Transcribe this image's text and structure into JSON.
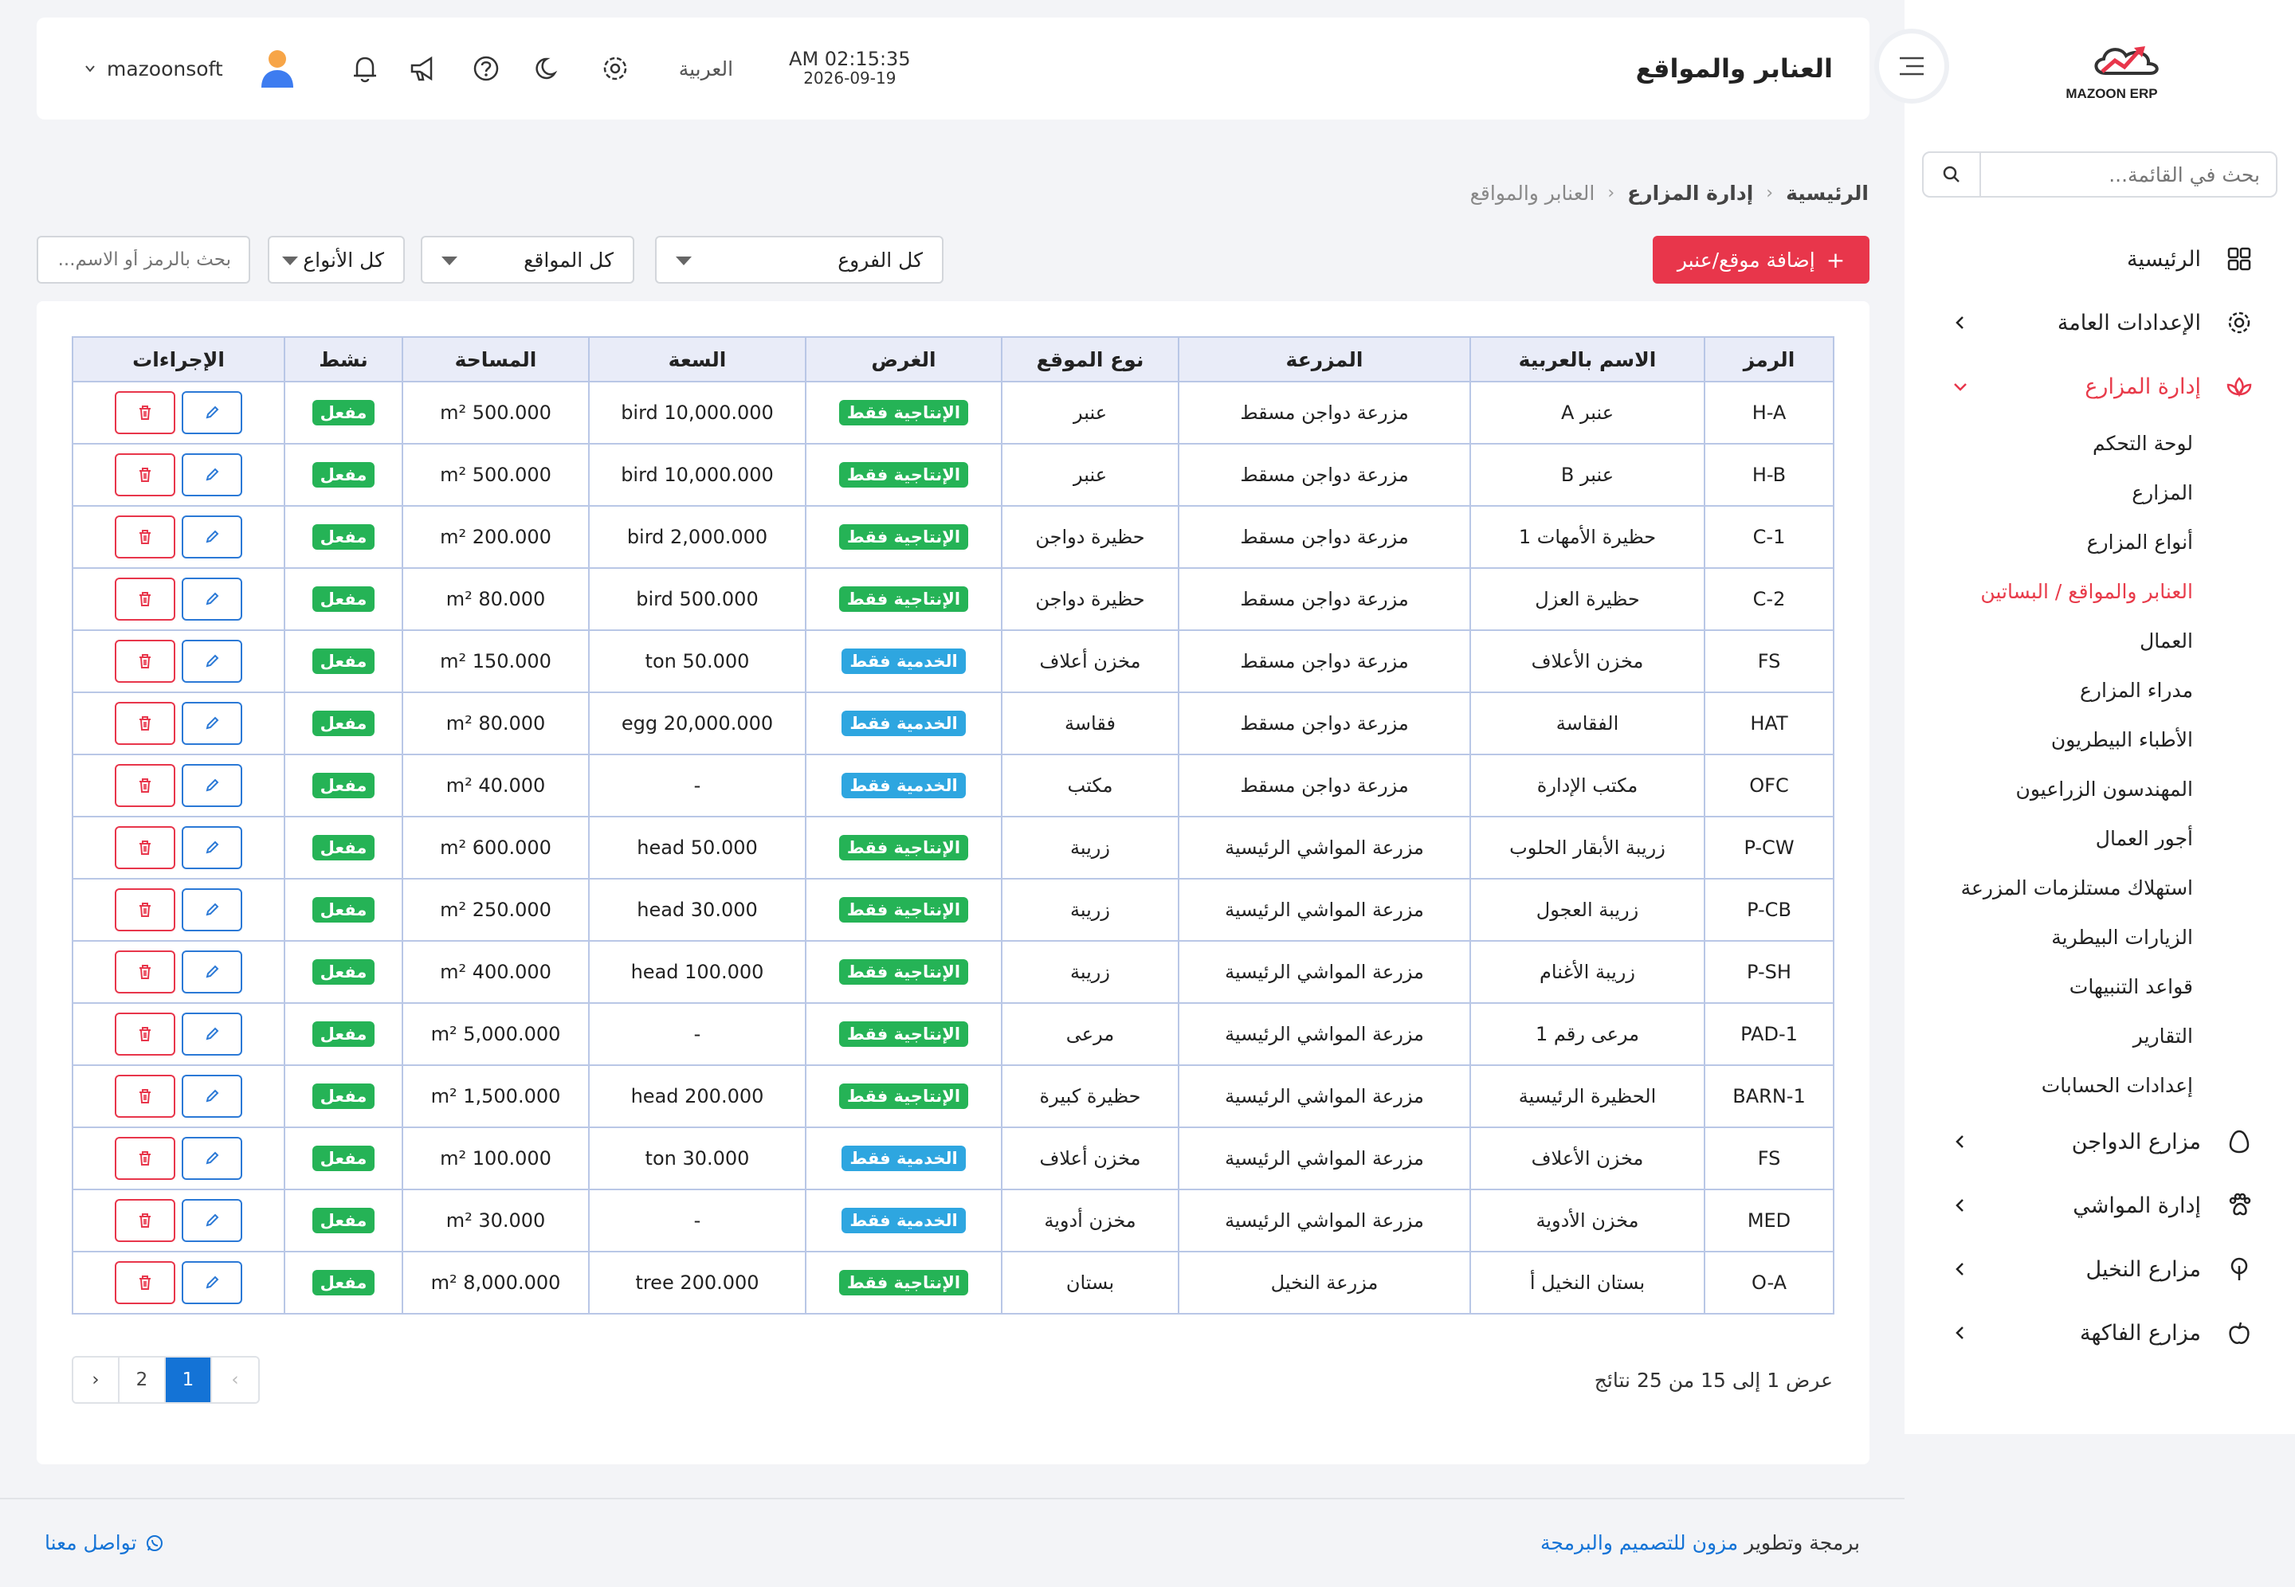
{
  "sidebar": {
    "brand": "MAZOON ERP",
    "search_placeholder": "بحث في القائمة...",
    "items": [
      {
        "label": "الرئيسية"
      },
      {
        "label": "الإعدادات العامة"
      },
      {
        "label": "إدارة المزارع"
      },
      {
        "label": "مزارع الدواجن"
      },
      {
        "label": "إدارة المواشي"
      },
      {
        "label": "مزارع النخيل"
      },
      {
        "label": "مزارع الفاكهة"
      }
    ],
    "sub_items": [
      {
        "label": "لوحة التحكم"
      },
      {
        "label": "المزارع"
      },
      {
        "label": "أنواع المزارع"
      },
      {
        "label": "العنابر والمواقع / البساتين"
      },
      {
        "label": "العمال"
      },
      {
        "label": "مدراء المزارع"
      },
      {
        "label": "الأطباء البيطريون"
      },
      {
        "label": "المهندسون الزراعيون"
      },
      {
        "label": "أجور العمال"
      },
      {
        "label": "استهلاك مستلزمات المزرعة"
      },
      {
        "label": "الزيارات البيطرية"
      },
      {
        "label": "قواعد التنبيهات"
      },
      {
        "label": "التقارير"
      },
      {
        "label": "إعدادات الحسابات"
      }
    ]
  },
  "header": {
    "title": "العنابر والمواقع",
    "time": "AM 02:15:35",
    "date": "2026-09-19",
    "language": "العربية",
    "username": "mazoonsoft"
  },
  "breadcrumb": {
    "home": "الرئيسية",
    "section": "إدارة المزارع",
    "current": "العنابر والمواقع"
  },
  "toolbar": {
    "add_button": "إضافة موقع/عنبر",
    "branches": "كل الفروع",
    "locations": "كل المواقع",
    "types": "كل الأنواع",
    "search_placeholder": "بحث بالرمز أو الاسم..."
  },
  "table": {
    "headers": [
      "الرمز",
      "الاسم بالعربية",
      "المزرعة",
      "نوع الموقع",
      "الغرض",
      "السعة",
      "المساحة",
      "نشط",
      "الإجراءات"
    ],
    "rows": [
      {
        "code": "H-A",
        "name": "عنبر A",
        "farm": "مزرعة دواجن مسقط",
        "type": "عنبر",
        "purpose": "الإنتاجية فقط",
        "kind": "prod",
        "capacity": "bird 10,000.000",
        "area": "m² 500.000",
        "active": "مفعل"
      },
      {
        "code": "H-B",
        "name": "عنبر B",
        "farm": "مزرعة دواجن مسقط",
        "type": "عنبر",
        "purpose": "الإنتاجية فقط",
        "kind": "prod",
        "capacity": "bird 10,000.000",
        "area": "m² 500.000",
        "active": "مفعل"
      },
      {
        "code": "C-1",
        "name": "حظيرة الأمهات 1",
        "farm": "مزرعة دواجن مسقط",
        "type": "حظيرة دواجن",
        "purpose": "الإنتاجية فقط",
        "kind": "prod",
        "capacity": "bird 2,000.000",
        "area": "m² 200.000",
        "active": "مفعل"
      },
      {
        "code": "C-2",
        "name": "حظيرة العزل",
        "farm": "مزرعة دواجن مسقط",
        "type": "حظيرة دواجن",
        "purpose": "الإنتاجية فقط",
        "kind": "prod",
        "capacity": "bird 500.000",
        "area": "m² 80.000",
        "active": "مفعل"
      },
      {
        "code": "FS",
        "name": "مخزن الأعلاف",
        "farm": "مزرعة دواجن مسقط",
        "type": "مخزن أعلاف",
        "purpose": "الخدمية فقط",
        "kind": "serv",
        "capacity": "ton 50.000",
        "area": "m² 150.000",
        "active": "مفعل"
      },
      {
        "code": "HAT",
        "name": "الفقاسة",
        "farm": "مزرعة دواجن مسقط",
        "type": "فقاسة",
        "purpose": "الخدمية فقط",
        "kind": "serv",
        "capacity": "egg 20,000.000",
        "area": "m² 80.000",
        "active": "مفعل"
      },
      {
        "code": "OFC",
        "name": "مكتب الإدارة",
        "farm": "مزرعة دواجن مسقط",
        "type": "مكتب",
        "purpose": "الخدمية فقط",
        "kind": "serv",
        "capacity": "-",
        "area": "m² 40.000",
        "active": "مفعل"
      },
      {
        "code": "P-CW",
        "name": "زريبة الأبقار الحلوب",
        "farm": "مزرعة المواشي الرئيسية",
        "type": "زريبة",
        "purpose": "الإنتاجية فقط",
        "kind": "prod",
        "capacity": "head 50.000",
        "area": "m² 600.000",
        "active": "مفعل"
      },
      {
        "code": "P-CB",
        "name": "زريبة العجول",
        "farm": "مزرعة المواشي الرئيسية",
        "type": "زريبة",
        "purpose": "الإنتاجية فقط",
        "kind": "prod",
        "capacity": "head 30.000",
        "area": "m² 250.000",
        "active": "مفعل"
      },
      {
        "code": "P-SH",
        "name": "زريبة الأغنام",
        "farm": "مزرعة المواشي الرئيسية",
        "type": "زريبة",
        "purpose": "الإنتاجية فقط",
        "kind": "prod",
        "capacity": "head 100.000",
        "area": "m² 400.000",
        "active": "مفعل"
      },
      {
        "code": "PAD-1",
        "name": "مرعى رقم 1",
        "farm": "مزرعة المواشي الرئيسية",
        "type": "مرعى",
        "purpose": "الإنتاجية فقط",
        "kind": "prod",
        "capacity": "-",
        "area": "m² 5,000.000",
        "active": "مفعل"
      },
      {
        "code": "BARN-1",
        "name": "الحظيرة الرئيسية",
        "farm": "مزرعة المواشي الرئيسية",
        "type": "حظيرة كبيرة",
        "purpose": "الإنتاجية فقط",
        "kind": "prod",
        "capacity": "head 200.000",
        "area": "m² 1,500.000",
        "active": "مفعل"
      },
      {
        "code": "FS",
        "name": "مخزن الأعلاف",
        "farm": "مزرعة المواشي الرئيسية",
        "type": "مخزن أعلاف",
        "purpose": "الخدمية فقط",
        "kind": "serv",
        "capacity": "ton 30.000",
        "area": "m² 100.000",
        "active": "مفعل"
      },
      {
        "code": "MED",
        "name": "مخزن الأدوية",
        "farm": "مزرعة المواشي الرئيسية",
        "type": "مخزن أدوية",
        "purpose": "الخدمية فقط",
        "kind": "serv",
        "capacity": "-",
        "area": "m² 30.000",
        "active": "مفعل"
      },
      {
        "code": "O-A",
        "name": "بستان النخيل أ",
        "farm": "مزرعة النخيل",
        "type": "بستان",
        "purpose": "الإنتاجية فقط",
        "kind": "prod",
        "capacity": "tree 200.000",
        "area": "m² 8,000.000",
        "active": "مفعل"
      }
    ]
  },
  "pagination": {
    "info": "عرض 1 إلى 15 من 25 نتائج",
    "prev": "‹",
    "next": "›",
    "pages": [
      "1",
      "2"
    ],
    "current": "1"
  },
  "footer": {
    "credit_prefix": "برمجة وتطوير",
    "credit_link": "مزون للتصميم والبرمجة",
    "contact": "تواصل معنا"
  },
  "colors": {
    "accent": "#e8364b",
    "primary": "#1473d6",
    "success": "#25b356",
    "info": "#2ea6e0"
  }
}
